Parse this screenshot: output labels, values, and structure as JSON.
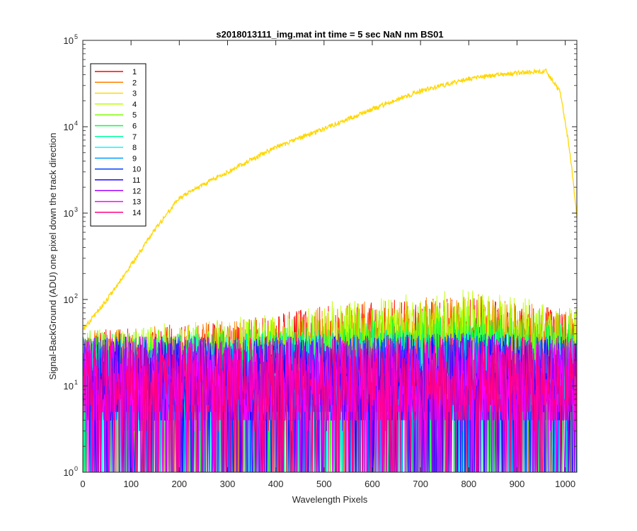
{
  "chart_data": {
    "type": "line",
    "title": "s2018013111_img.mat int time = 5 sec  NaN nm BS01",
    "xlabel": "Wavelength Pixels",
    "ylabel": "Signal-BackGround (ADU) one pixel down the track direction",
    "xlim": [
      0,
      1024
    ],
    "ylim": [
      1,
      100000
    ],
    "yscale": "log",
    "x_ticks": [
      "0",
      "100",
      "200",
      "300",
      "400",
      "500",
      "600",
      "700",
      "800",
      "900",
      "1000"
    ],
    "y_tick_exponents": [
      "0",
      "1",
      "2",
      "3",
      "4",
      "5"
    ],
    "y_tick_base": "10",
    "grid": false,
    "legend_position": "top-left",
    "series": [
      {
        "name": "1",
        "color": "#ff0000",
        "shape": "noise",
        "profile": [
          [
            0,
            12
          ],
          [
            300,
            15
          ],
          [
            550,
            25
          ],
          [
            800,
            32
          ],
          [
            1024,
            20
          ]
        ]
      },
      {
        "name": "2",
        "color": "#ff7f00",
        "shape": "noise",
        "profile": [
          [
            0,
            12
          ],
          [
            300,
            15
          ],
          [
            550,
            25
          ],
          [
            800,
            32
          ],
          [
            1024,
            20
          ]
        ]
      },
      {
        "name": "3",
        "color": "#ffd700",
        "shape": "signal",
        "profile": [
          [
            1,
            45
          ],
          [
            50,
            100
          ],
          [
            100,
            250
          ],
          [
            150,
            650
          ],
          [
            200,
            1500
          ],
          [
            300,
            3000
          ],
          [
            400,
            5800
          ],
          [
            500,
            9500
          ],
          [
            600,
            16000
          ],
          [
            700,
            26000
          ],
          [
            800,
            36000
          ],
          [
            900,
            42000
          ],
          [
            960,
            44000
          ],
          [
            990,
            25000
          ],
          [
            1010,
            5000
          ],
          [
            1024,
            900
          ]
        ]
      },
      {
        "name": "4",
        "color": "#bfff00",
        "shape": "noise",
        "profile": [
          [
            0,
            12
          ],
          [
            300,
            16
          ],
          [
            550,
            28
          ],
          [
            800,
            35
          ],
          [
            1024,
            22
          ]
        ]
      },
      {
        "name": "5",
        "color": "#7fff00",
        "shape": "noise",
        "profile": [
          [
            0,
            12
          ],
          [
            300,
            14
          ],
          [
            550,
            20
          ],
          [
            800,
            25
          ],
          [
            1024,
            18
          ]
        ]
      },
      {
        "name": "6",
        "color": "#00ff40",
        "shape": "noise",
        "profile": [
          [
            0,
            11
          ],
          [
            300,
            12
          ],
          [
            550,
            15
          ],
          [
            800,
            18
          ],
          [
            1024,
            14
          ]
        ]
      },
      {
        "name": "7",
        "color": "#00ffa0",
        "shape": "noise",
        "profile": [
          [
            0,
            10
          ],
          [
            300,
            11
          ],
          [
            550,
            12
          ],
          [
            800,
            13
          ],
          [
            1024,
            11
          ]
        ]
      },
      {
        "name": "8",
        "color": "#00ffff",
        "shape": "noise",
        "profile": [
          [
            0,
            10
          ],
          [
            300,
            10
          ],
          [
            550,
            11
          ],
          [
            800,
            12
          ],
          [
            1024,
            10
          ]
        ]
      },
      {
        "name": "9",
        "color": "#009fff",
        "shape": "noise",
        "profile": [
          [
            0,
            10
          ],
          [
            300,
            10
          ],
          [
            550,
            11
          ],
          [
            800,
            11
          ],
          [
            1024,
            10
          ]
        ]
      },
      {
        "name": "10",
        "color": "#0040ff",
        "shape": "noise",
        "profile": [
          [
            0,
            10
          ],
          [
            300,
            10
          ],
          [
            550,
            11
          ],
          [
            800,
            11
          ],
          [
            1024,
            10
          ]
        ]
      },
      {
        "name": "11",
        "color": "#2000ff",
        "shape": "noise",
        "profile": [
          [
            0,
            10
          ],
          [
            300,
            10
          ],
          [
            550,
            10
          ],
          [
            800,
            11
          ],
          [
            1024,
            10
          ]
        ]
      },
      {
        "name": "12",
        "color": "#9f00ff",
        "shape": "noise",
        "profile": [
          [
            0,
            10
          ],
          [
            300,
            10
          ],
          [
            550,
            10
          ],
          [
            800,
            11
          ],
          [
            1024,
            10
          ]
        ]
      },
      {
        "name": "13",
        "color": "#ff00ff",
        "shape": "noise",
        "profile": [
          [
            0,
            10
          ],
          [
            300,
            10
          ],
          [
            550,
            10
          ],
          [
            800,
            10
          ],
          [
            1024,
            10
          ]
        ]
      },
      {
        "name": "14",
        "color": "#ff0080",
        "shape": "noise",
        "profile": [
          [
            0,
            10
          ],
          [
            300,
            10
          ],
          [
            550,
            10
          ],
          [
            800,
            10
          ],
          [
            1024,
            10
          ]
        ]
      }
    ]
  }
}
